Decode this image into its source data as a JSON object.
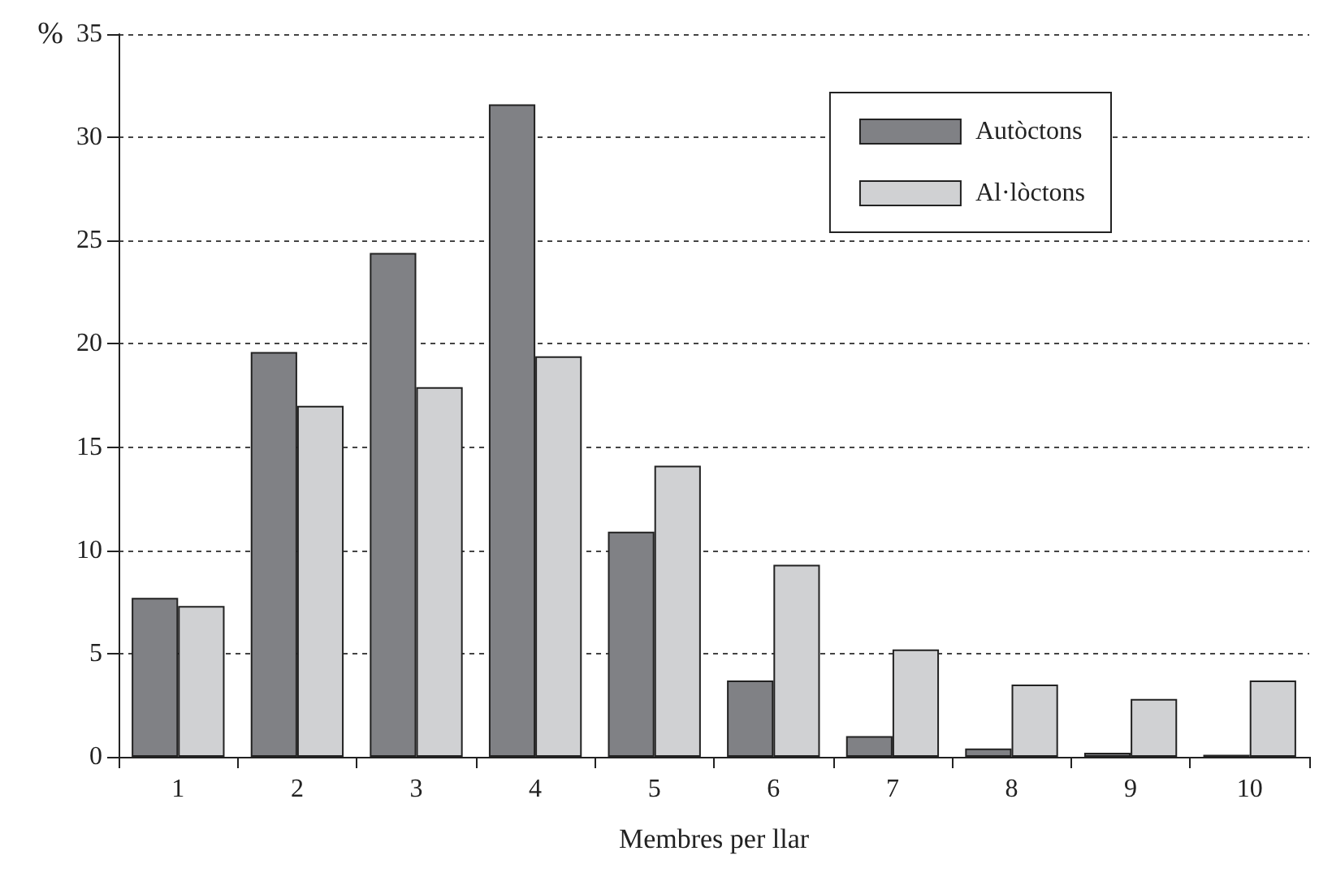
{
  "chart_data": {
    "type": "bar",
    "xlabel": "Membres per llar",
    "ylabel": "%",
    "categories": [
      "1",
      "2",
      "3",
      "4",
      "5",
      "6",
      "7",
      "8",
      "9",
      "10"
    ],
    "series": [
      {
        "name": "Autòctons",
        "color": "#808185",
        "values": [
          7.7,
          19.6,
          24.4,
          31.6,
          10.9,
          3.7,
          1.0,
          0.4,
          0.2,
          0.1
        ]
      },
      {
        "name": "Al·lòctons",
        "color": "#d0d1d3",
        "values": [
          7.3,
          17.0,
          17.9,
          19.4,
          14.1,
          9.3,
          5.2,
          3.5,
          2.8,
          3.7
        ]
      }
    ],
    "ylim": [
      0,
      35
    ],
    "yticks": [
      0,
      5,
      10,
      15,
      20,
      25,
      30,
      35
    ],
    "grid": "y",
    "legend": "top right"
  }
}
